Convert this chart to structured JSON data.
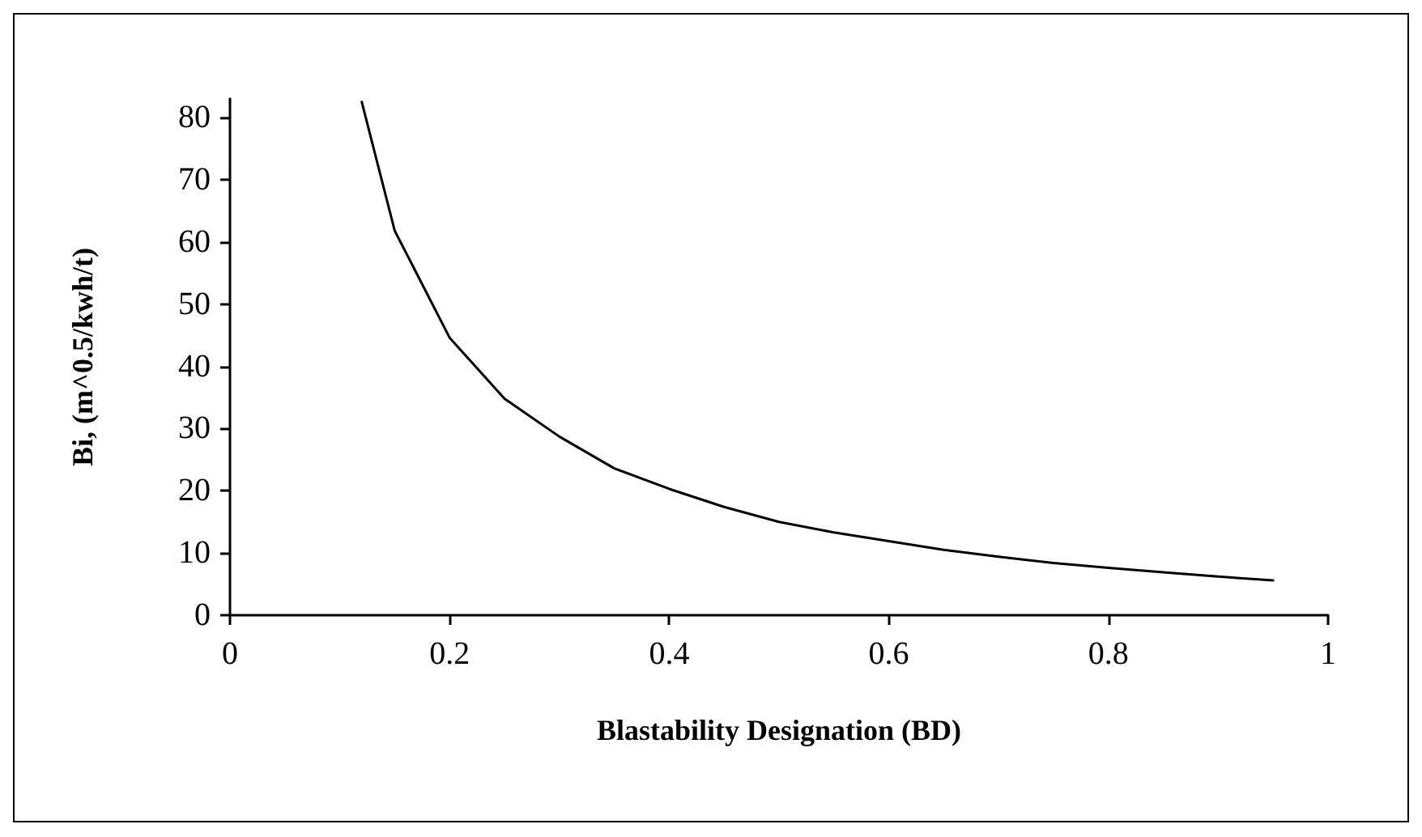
{
  "chart_data": {
    "type": "line",
    "xlabel": "Blastability Designation (BD)",
    "ylabel": "Bi, (m^0.5/kwh/t)",
    "x": [
      0.12,
      0.15,
      0.2,
      0.25,
      0.3,
      0.35,
      0.4,
      0.45,
      0.5,
      0.55,
      0.6,
      0.65,
      0.7,
      0.75,
      0.8,
      0.85,
      0.9,
      0.95
    ],
    "series": [
      {
        "color": "#000000",
        "values": [
          82.5,
          61.8,
          44.6,
          34.8,
          28.7,
          23.6,
          20.3,
          17.4,
          15,
          13.3,
          11.9,
          10.5,
          9.4,
          8.4,
          7.6,
          6.9,
          6.2,
          5.6
        ]
      }
    ],
    "xlim": [
      0,
      1
    ],
    "xticks": [
      0,
      0.2,
      0.4,
      0.6,
      0.8,
      1
    ],
    "ylim": [
      0,
      83
    ],
    "yticks": [
      0,
      10,
      20,
      30,
      40,
      50,
      60,
      70,
      80
    ],
    "grid": false,
    "marker": "none",
    "line_style": "solid"
  }
}
